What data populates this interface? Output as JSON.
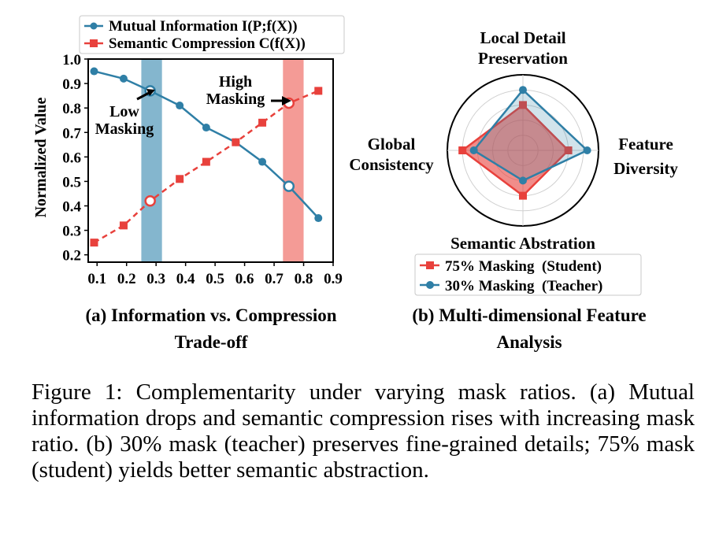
{
  "figure": {
    "caption": "Figure 1: Complementarity under varying mask ratios. (a) Mutual information drops and semantic compression rises with increasing mask ratio. (b) 30% mask (teacher) preserves fine-grained details; 75% mask (student) yields better semantic abstraction."
  },
  "colors": {
    "teacher": "#2f7fa6",
    "student": "#e8413c",
    "low_band": "#6fa9c6",
    "high_band": "#f28a84"
  },
  "chart_data": [
    {
      "type": "line",
      "subcaption_line1": "(a) Information vs. Compression",
      "subcaption_line2": "Trade-off",
      "ylabel": "Normalized Value",
      "xlabel": "",
      "xlim": [
        0.07,
        0.9
      ],
      "ylim": [
        0.17,
        1.0
      ],
      "xticks": [
        "0.1",
        "0.2",
        "0.3",
        "0.4",
        "0.5",
        "0.6",
        "0.7",
        "0.8",
        "0.9"
      ],
      "yticks": [
        "0.2",
        "0.3",
        "0.4",
        "0.5",
        "0.6",
        "0.7",
        "0.8",
        "0.9",
        "1.0"
      ],
      "legend": "top-left",
      "bands": [
        {
          "x0": 0.25,
          "x1": 0.32,
          "label_line1": "Low",
          "label_line2": "Masking",
          "color_key": "low_band"
        },
        {
          "x0": 0.73,
          "x1": 0.8,
          "label_line1": "High",
          "label_line2": "Masking",
          "color_key": "high_band"
        }
      ],
      "series": [
        {
          "name": "Mutual Information I(P;f(X))",
          "color_key": "teacher",
          "marker": "circle",
          "dash": "solid",
          "x": [
            0.09,
            0.19,
            0.28,
            0.38,
            0.47,
            0.57,
            0.66,
            0.75,
            0.85
          ],
          "y": [
            0.95,
            0.92,
            0.87,
            0.81,
            0.72,
            0.66,
            0.58,
            0.48,
            0.35
          ],
          "highlight_indices": [
            2,
            7
          ]
        },
        {
          "name": "Semantic Compression C(f(X))",
          "color_key": "student",
          "marker": "square",
          "dash": "dashed",
          "x": [
            0.09,
            0.19,
            0.28,
            0.38,
            0.47,
            0.57,
            0.66,
            0.75,
            0.85
          ],
          "y": [
            0.25,
            0.32,
            0.42,
            0.51,
            0.58,
            0.66,
            0.74,
            0.82,
            0.87
          ],
          "highlight_indices": [
            2,
            7
          ]
        }
      ]
    },
    {
      "type": "radar",
      "subcaption_line1": "(b) Multi-dimensional Feature",
      "subcaption_line2": "Analysis",
      "axes": [
        {
          "label_line1": "Local Detail",
          "label_line2": "Preservation"
        },
        {
          "label_line1": "Feature",
          "label_line2": "Diversity"
        },
        {
          "label_line1": "Semantic Abstration",
          "label_line2": ""
        },
        {
          "label_line1": "Global",
          "label_line2": "Consistency"
        }
      ],
      "rmax": 1.0,
      "grid_levels": [
        0.2,
        0.4,
        0.6,
        0.8
      ],
      "legend": "bottom",
      "series": [
        {
          "name": "75% Masking  (Student)",
          "color_key": "student",
          "marker": "square",
          "values": [
            0.6,
            0.6,
            0.6,
            0.8
          ]
        },
        {
          "name": "30% Masking  (Teacher)",
          "color_key": "teacher",
          "marker": "circle",
          "values": [
            0.8,
            0.85,
            0.4,
            0.65
          ]
        }
      ]
    }
  ]
}
